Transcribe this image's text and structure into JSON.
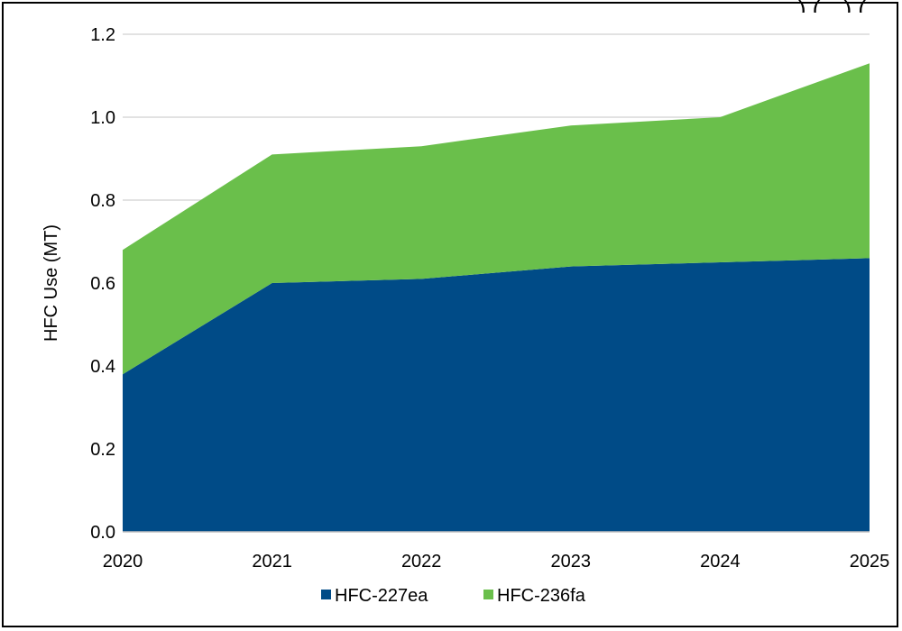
{
  "cut_off_title": "…) (…) (…",
  "chart_data": {
    "type": "area",
    "stacked": true,
    "title_partial": "…) (…) (…",
    "xlabel": "",
    "ylabel": "HFC Use (MT)",
    "categories": [
      "2020",
      "2021",
      "2022",
      "2023",
      "2024",
      "2025"
    ],
    "ylim": [
      0,
      1.2
    ],
    "yticks": [
      "0.0",
      "0.2",
      "0.4",
      "0.6",
      "0.8",
      "1.0",
      "1.2"
    ],
    "grid": "horizontal",
    "legend_position": "bottom",
    "series": [
      {
        "name": "HFC-227ea",
        "color": "#004b87",
        "values": [
          0.38,
          0.6,
          0.61,
          0.64,
          0.65,
          0.66
        ]
      },
      {
        "name": "HFC-236fa",
        "color": "#6abf4b",
        "values": [
          0.3,
          0.31,
          0.32,
          0.34,
          0.35,
          0.47
        ]
      }
    ]
  }
}
